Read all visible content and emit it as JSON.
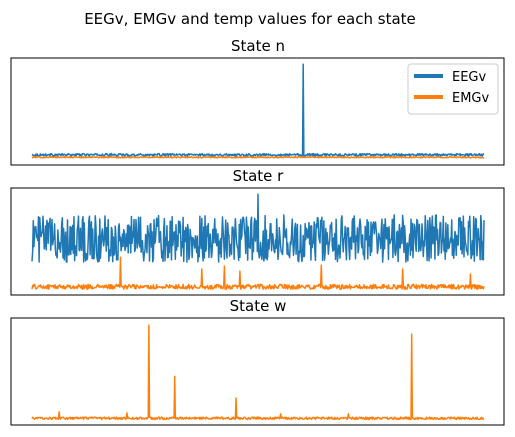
{
  "figure": {
    "title": "EEGv, EMGv and temp values for each state"
  },
  "colors": {
    "eegv": "#1f77b4",
    "emgv": "#ff7f0e",
    "axes": "#000000",
    "background": "#ffffff"
  },
  "chart_data": [
    {
      "type": "line",
      "title": "State n",
      "grid": false,
      "legend": {
        "position": "top-right",
        "entries": [
          "EEGv",
          "EMGv"
        ]
      },
      "ylim": [
        0,
        100
      ],
      "series": [
        {
          "name": "EEGv",
          "color": "#1f77b4",
          "baseline": 6,
          "noise": 1.2,
          "spikes": [
            [
              0.6,
              98
            ]
          ]
        },
        {
          "name": "EMGv",
          "color": "#ff7f0e",
          "baseline": 3.5,
          "noise": 0.6,
          "spikes": []
        }
      ]
    },
    {
      "type": "line",
      "title": "State r",
      "grid": false,
      "ylim": [
        0,
        100
      ],
      "series": [
        {
          "name": "EEGv",
          "color": "#1f77b4",
          "baseline": 53,
          "noise": 24,
          "spikes": [
            [
              0.5,
              98
            ],
            [
              0.285,
              60
            ],
            [
              0.63,
              64
            ]
          ]
        },
        {
          "name": "EMGv",
          "color": "#ff7f0e",
          "baseline": 4,
          "noise": 2.5,
          "spikes": [
            [
              0.195,
              34
            ],
            [
              0.375,
              22
            ],
            [
              0.425,
              25
            ],
            [
              0.46,
              20
            ],
            [
              0.64,
              26
            ],
            [
              0.82,
              22
            ],
            [
              0.97,
              17
            ]
          ]
        }
      ]
    },
    {
      "type": "line",
      "title": "State w",
      "grid": false,
      "ylim": [
        0,
        100
      ],
      "series": [
        {
          "name": "EMGv",
          "color": "#ff7f0e",
          "baseline": 2.5,
          "noise": 1.2,
          "spikes": [
            [
              0.258,
              97
            ],
            [
              0.316,
              45
            ],
            [
              0.452,
              23
            ],
            [
              0.84,
              88
            ],
            [
              0.06,
              9
            ],
            [
              0.21,
              8
            ],
            [
              0.55,
              7
            ],
            [
              0.7,
              7
            ]
          ]
        }
      ]
    }
  ]
}
